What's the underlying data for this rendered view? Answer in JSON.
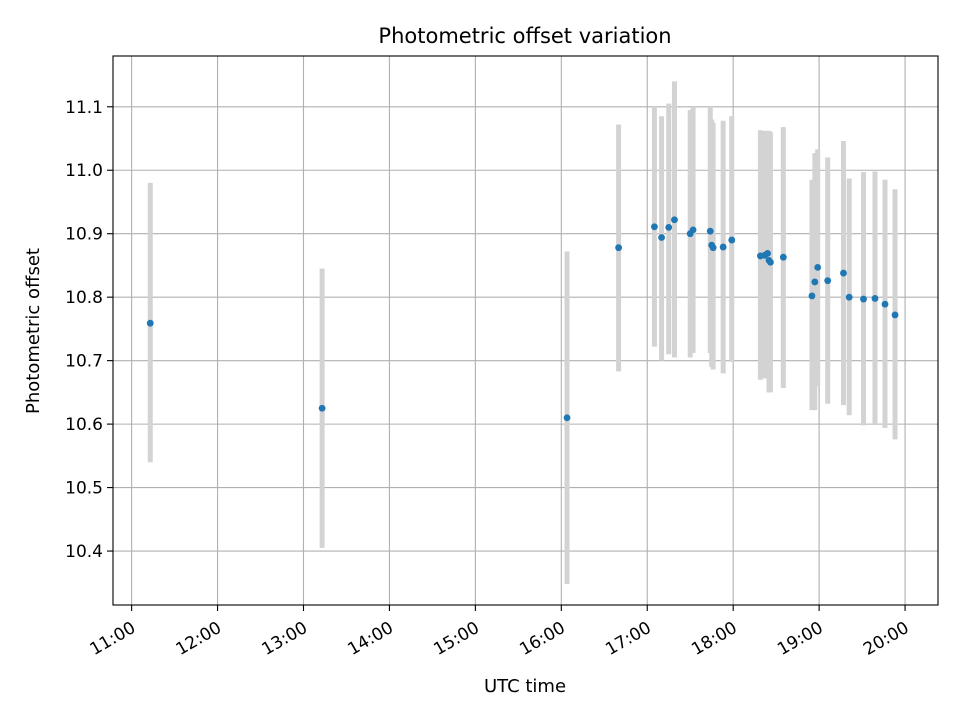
{
  "chart_data": {
    "type": "scatter",
    "title": "Photometric offset variation",
    "xlabel": "UTC time",
    "ylabel": "Photometric offset",
    "x_axis_kind": "time",
    "xlim": [
      "10:47",
      "20:23"
    ],
    "ylim": [
      10.315,
      11.18
    ],
    "x_ticks": [
      "11:00",
      "12:00",
      "13:00",
      "14:00",
      "15:00",
      "16:00",
      "17:00",
      "18:00",
      "19:00",
      "20:00"
    ],
    "y_ticks": [
      10.4,
      10.5,
      10.6,
      10.7,
      10.8,
      10.9,
      11.0,
      11.1
    ],
    "grid": true,
    "legend": "none",
    "colors": {
      "points": "#1f77b4",
      "error_bars": "#d3d3d3",
      "grid": "#b0b0b0"
    },
    "series": [
      {
        "points": [
          {
            "time": "11:13",
            "y": 10.759,
            "low": 10.54,
            "high": 10.98
          },
          {
            "time": "13:13",
            "y": 10.625,
            "low": 10.405,
            "high": 10.845
          },
          {
            "time": "16:04",
            "y": 10.61,
            "low": 10.348,
            "high": 10.872
          },
          {
            "time": "16:40",
            "y": 10.878,
            "low": 10.683,
            "high": 11.072
          },
          {
            "time": "17:05",
            "y": 10.911,
            "low": 10.722,
            "high": 11.1
          },
          {
            "time": "17:10",
            "y": 10.894,
            "low": 10.7,
            "high": 11.085
          },
          {
            "time": "17:15",
            "y": 10.91,
            "low": 10.71,
            "high": 11.105
          },
          {
            "time": "17:19",
            "y": 10.922,
            "low": 10.705,
            "high": 11.14
          },
          {
            "time": "17:30",
            "y": 10.9,
            "low": 10.705,
            "high": 11.095
          },
          {
            "time": "17:32",
            "y": 10.906,
            "low": 10.712,
            "high": 11.1
          },
          {
            "time": "17:44",
            "y": 10.904,
            "low": 10.712,
            "high": 11.1
          },
          {
            "time": "17:45",
            "y": 10.882,
            "low": 10.69,
            "high": 11.08
          },
          {
            "time": "17:46",
            "y": 10.878,
            "low": 10.686,
            "high": 11.075
          },
          {
            "time": "17:53",
            "y": 10.879,
            "low": 10.68,
            "high": 11.078
          },
          {
            "time": "17:59",
            "y": 10.89,
            "low": 10.698,
            "high": 11.085
          },
          {
            "time": "18:19",
            "y": 10.865,
            "low": 10.67,
            "high": 11.063
          },
          {
            "time": "18:22",
            "y": 10.866,
            "low": 10.672,
            "high": 11.062
          },
          {
            "time": "18:24",
            "y": 10.869,
            "low": 10.675,
            "high": 11.062
          },
          {
            "time": "18:25",
            "y": 10.858,
            "low": 10.65,
            "high": 11.062
          },
          {
            "time": "18:26",
            "y": 10.855,
            "low": 10.65,
            "high": 11.06
          },
          {
            "time": "18:35",
            "y": 10.863,
            "low": 10.657,
            "high": 11.068
          },
          {
            "time": "18:55",
            "y": 10.802,
            "low": 10.622,
            "high": 10.985
          },
          {
            "time": "18:57",
            "y": 10.824,
            "low": 10.622,
            "high": 11.027
          },
          {
            "time": "18:59",
            "y": 10.847,
            "low": 10.66,
            "high": 11.033
          },
          {
            "time": "19:06",
            "y": 10.826,
            "low": 10.632,
            "high": 11.02
          },
          {
            "time": "19:17",
            "y": 10.838,
            "low": 10.63,
            "high": 11.046
          },
          {
            "time": "19:21",
            "y": 10.8,
            "low": 10.614,
            "high": 10.987
          },
          {
            "time": "19:31",
            "y": 10.797,
            "low": 10.598,
            "high": 10.997
          },
          {
            "time": "19:39",
            "y": 10.798,
            "low": 10.6,
            "high": 10.998
          },
          {
            "time": "19:46",
            "y": 10.789,
            "low": 10.594,
            "high": 10.985
          },
          {
            "time": "19:53",
            "y": 10.772,
            "low": 10.576,
            "high": 10.97
          }
        ]
      }
    ]
  }
}
